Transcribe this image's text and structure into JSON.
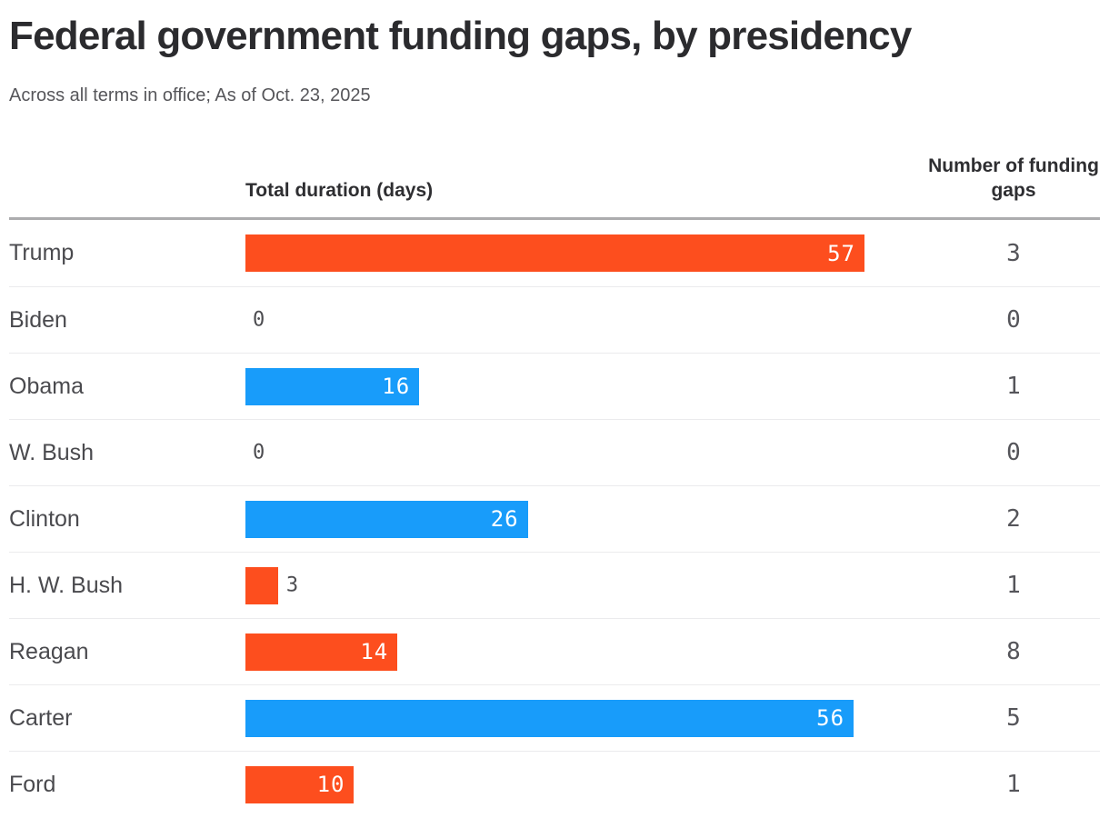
{
  "header": {
    "title": "Federal government funding gaps, by presidency",
    "subtitle": "Across all terms in office; As of Oct. 23, 2025"
  },
  "columns": {
    "duration_header": "Total duration (days)",
    "gaps_header": "Number of funding gaps"
  },
  "colors": {
    "republican_orange": "#fd4e1e",
    "democrat_blue": "#189cfa",
    "bar_label_inside": "#ffffff",
    "bar_label_outside": "#4c4c50",
    "divider": "#ebebed",
    "header_rule": "#acacae"
  },
  "chart_data": {
    "type": "bar",
    "orientation": "horizontal",
    "title": "Federal government funding gaps, by presidency",
    "subtitle": "Across all terms in office; As of Oct. 23, 2025",
    "categories": [
      "Trump",
      "Biden",
      "Obama",
      "W. Bush",
      "Clinton",
      "H. W. Bush",
      "Reagan",
      "Carter",
      "Ford"
    ],
    "series": [
      {
        "name": "Total duration (days)",
        "values": [
          57,
          0,
          16,
          0,
          26,
          3,
          14,
          56,
          10
        ]
      },
      {
        "name": "Number of funding gaps",
        "values": [
          3,
          0,
          1,
          0,
          2,
          1,
          8,
          5,
          1
        ]
      }
    ],
    "bar_colors": [
      "#fd4e1e",
      "#189cfa",
      "#189cfa",
      "#fd4e1e",
      "#189cfa",
      "#fd4e1e",
      "#fd4e1e",
      "#189cfa",
      "#fd4e1e"
    ],
    "xlim": [
      0,
      57
    ],
    "grid": false,
    "legend": false,
    "value_labels": "on-bar"
  }
}
